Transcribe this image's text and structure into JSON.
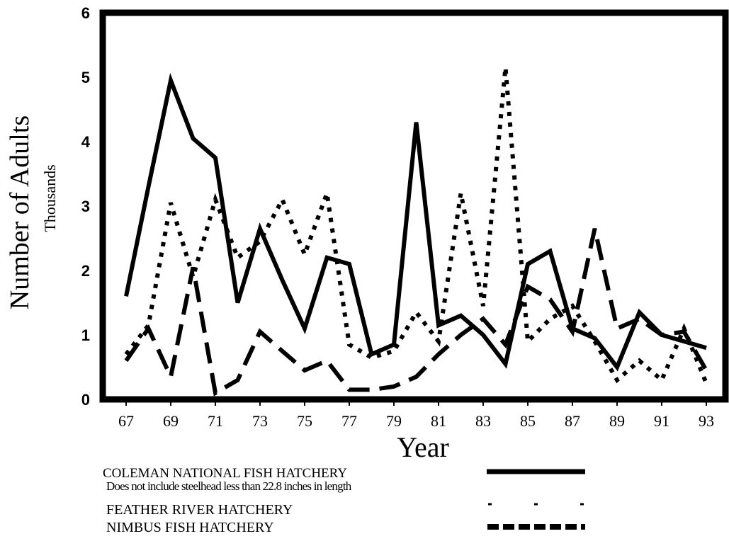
{
  "chart_data": {
    "type": "line",
    "title": "",
    "xlabel": "Year",
    "ylabel": "Number of Adults",
    "ylabel_sub": "Thousands",
    "x": [
      67,
      68,
      69,
      70,
      71,
      72,
      73,
      74,
      75,
      76,
      77,
      78,
      79,
      80,
      81,
      82,
      83,
      84,
      85,
      86,
      87,
      88,
      89,
      90,
      91,
      92,
      93
    ],
    "xticks": [
      "67",
      "69",
      "71",
      "73",
      "75",
      "77",
      "79",
      "81",
      "83",
      "85",
      "87",
      "89",
      "91",
      "93"
    ],
    "yticks": [
      "0",
      "1",
      "2",
      "3",
      "4",
      "5",
      "6"
    ],
    "ylim": [
      0,
      6
    ],
    "xlim": [
      66.5,
      93.5
    ],
    "grid": false,
    "series": [
      {
        "name": "COLEMAN NATIONAL FISH HATCHERY",
        "note": "Does not include steelhead less than 22.8 inches in length",
        "style": "solid",
        "values": [
          1.6,
          3.3,
          4.95,
          4.05,
          3.75,
          1.5,
          2.65,
          1.85,
          1.1,
          2.2,
          2.1,
          0.7,
          0.85,
          4.3,
          1.15,
          1.3,
          1.0,
          0.55,
          2.1,
          2.3,
          1.1,
          0.95,
          0.5,
          1.35,
          1.0,
          0.9,
          0.8
        ]
      },
      {
        "name": "FEATHER RIVER HATCHERY",
        "style": "dotted",
        "values": [
          0.7,
          1.15,
          3.05,
          1.9,
          3.1,
          2.2,
          2.45,
          3.1,
          2.25,
          3.2,
          0.85,
          0.65,
          0.75,
          1.35,
          0.9,
          3.2,
          1.45,
          5.15,
          0.9,
          1.25,
          1.45,
          0.9,
          0.3,
          0.6,
          0.3,
          1.1,
          0.25
        ]
      },
      {
        "name": "NIMBUS FISH HATCHERY",
        "style": "dashed",
        "values": [
          0.6,
          1.1,
          0.35,
          2.05,
          0.1,
          0.3,
          1.05,
          0.75,
          0.45,
          0.6,
          0.15,
          0.15,
          0.2,
          0.35,
          0.7,
          1.0,
          1.25,
          0.85,
          1.75,
          1.55,
          1.05,
          2.65,
          1.1,
          1.25,
          1.0,
          1.05,
          0.45
        ]
      }
    ]
  },
  "legend": {
    "coleman_label": "COLEMAN NATIONAL FISH HATCHERY",
    "coleman_note": "Does not include steelhead less than 22.8 inches in length",
    "feather_label": "FEATHER RIVER HATCHERY",
    "nimbus_label": "NIMBUS FISH  HATCHERY"
  },
  "colors": {
    "line": "#000000",
    "frame": "#000000",
    "background": "#ffffff"
  }
}
